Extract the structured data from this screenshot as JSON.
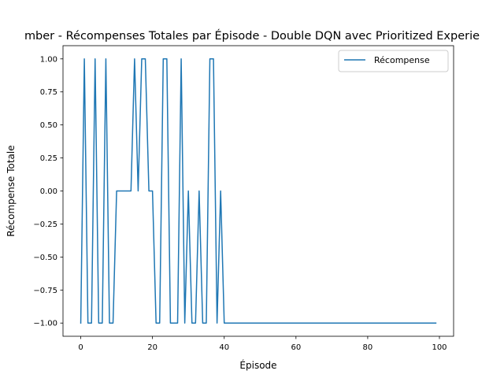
{
  "chart_data": {
    "type": "line",
    "title": "mber - Récompenses Totales par Épisode - Double DQN avec Prioritized Experie",
    "xlabel": "Épisode",
    "ylabel": "Récompense Totale",
    "xlim": [
      -4.95,
      103.95
    ],
    "ylim": [
      -1.1,
      1.1
    ],
    "xticks": [
      0,
      20,
      40,
      60,
      80,
      100
    ],
    "xtick_labels": [
      "0",
      "20",
      "40",
      "60",
      "80",
      "100"
    ],
    "yticks": [
      1.0,
      0.75,
      0.5,
      0.25,
      0.0,
      -0.25,
      -0.5,
      -0.75,
      -1.0
    ],
    "ytick_labels": [
      "1.00",
      "0.75",
      "0.50",
      "0.25",
      "0.00",
      "−0.25",
      "−0.50",
      "−0.75",
      "−1.00"
    ],
    "grid": false,
    "legend_position": "top-right",
    "series": [
      {
        "name": "Récompense",
        "color": "#1f77b4",
        "x": [
          0,
          1,
          2,
          3,
          4,
          5,
          6,
          7,
          8,
          9,
          10,
          11,
          12,
          13,
          14,
          15,
          16,
          17,
          18,
          19,
          20,
          21,
          22,
          23,
          24,
          25,
          26,
          27,
          28,
          29,
          30,
          31,
          32,
          33,
          34,
          35,
          36,
          37,
          38,
          39,
          40,
          41,
          42,
          43,
          44,
          45,
          46,
          47,
          48,
          49,
          50,
          51,
          52,
          53,
          54,
          55,
          56,
          57,
          58,
          59,
          60,
          61,
          62,
          63,
          64,
          65,
          66,
          67,
          68,
          69,
          70,
          71,
          72,
          73,
          74,
          75,
          76,
          77,
          78,
          79,
          80,
          81,
          82,
          83,
          84,
          85,
          86,
          87,
          88,
          89,
          90,
          91,
          92,
          93,
          94,
          95,
          96,
          97,
          98,
          99
        ],
        "values": [
          -1,
          1,
          -1,
          -1,
          1,
          -1,
          -1,
          1,
          -1,
          -1,
          0,
          0,
          0,
          0,
          0,
          1,
          0,
          1,
          1,
          0,
          0,
          -1,
          -1,
          1,
          1,
          -1,
          -1,
          -1,
          1,
          -1,
          0,
          -1,
          -1,
          0,
          -1,
          -1,
          1,
          1,
          -1,
          0,
          -1,
          -1,
          -1,
          -1,
          -1,
          -1,
          -1,
          -1,
          -1,
          -1,
          -1,
          -1,
          -1,
          -1,
          -1,
          -1,
          -1,
          -1,
          -1,
          -1,
          -1,
          -1,
          -1,
          -1,
          -1,
          -1,
          -1,
          -1,
          -1,
          -1,
          -1,
          -1,
          -1,
          -1,
          -1,
          -1,
          -1,
          -1,
          -1,
          -1,
          -1,
          -1,
          -1,
          -1,
          -1,
          -1,
          -1,
          -1,
          -1,
          -1,
          -1,
          -1,
          -1,
          -1,
          -1,
          -1,
          -1,
          -1,
          -1,
          -1
        ]
      }
    ]
  }
}
